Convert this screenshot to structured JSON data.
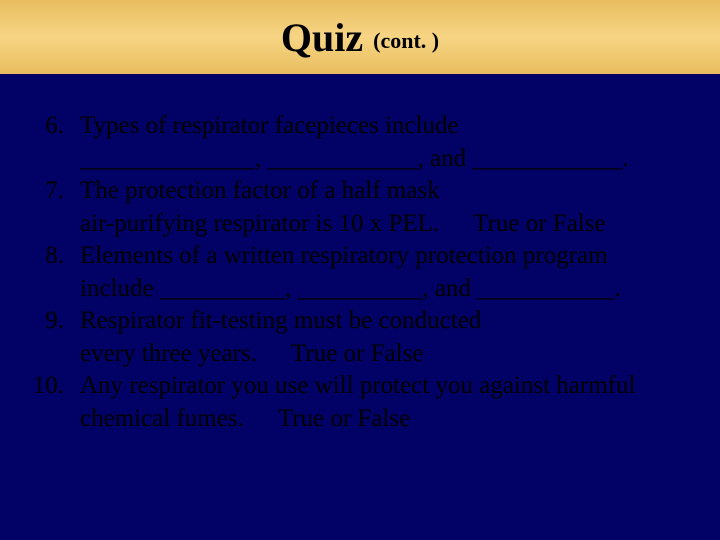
{
  "colors": {
    "background": "#010166",
    "title_bar_bg": "#f5ce7d",
    "text": "#000000"
  },
  "typography": {
    "title_main_fontsize": 40,
    "title_sub_fontsize": 22,
    "body_fontsize": 25,
    "font_family": "Times New Roman"
  },
  "title": {
    "main": "Quiz",
    "sub": "(cont. )"
  },
  "questions": [
    {
      "num": "6.",
      "line1": "Types of respirator facepieces include",
      "line2": "______________, ____________, and ____________."
    },
    {
      "num": "7.",
      "line1": "The protection factor of a half mask",
      "line2": "air-purifying respirator is 10 x PEL.",
      "tf": "True or False"
    },
    {
      "num": "8.",
      "line1": "Elements of a written respiratory protection program",
      "line2": "include __________, __________, and ___________."
    },
    {
      "num": "9.",
      "line1": "Respirator fit-testing must be conducted",
      "line2": "every three years.",
      "tf": "True or False"
    },
    {
      "num": "10.",
      "line1": "Any respirator you use will protect you against harmful",
      "line2": "chemical fumes.",
      "tf": "True or False"
    }
  ]
}
